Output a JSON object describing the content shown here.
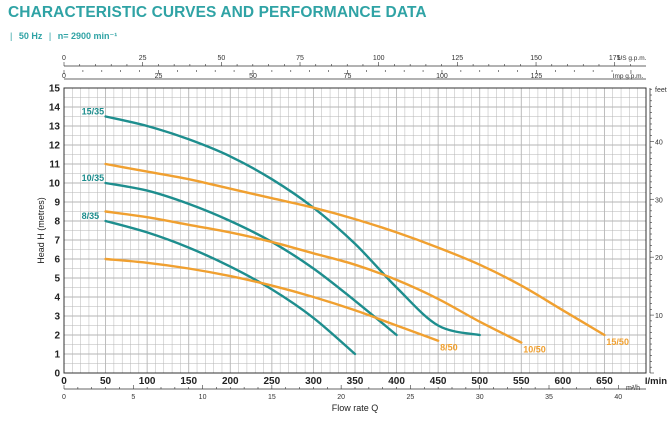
{
  "header": {
    "title": "CHARACTERISTIC CURVES AND PERFORMANCE DATA",
    "frequency": "50 Hz",
    "speed": "n= 2900 min⁻¹"
  },
  "colors": {
    "accent": "#2fa3a5",
    "teal_curve": "#1e8e8e",
    "orange_curve": "#f0a030",
    "grid": "#b5b5b5"
  },
  "chart_data": {
    "type": "line",
    "title": "",
    "xlabel": "Flow rate Q",
    "ylabel": "Head H (metres)",
    "y2label": "feet",
    "x_unit": "l/min",
    "x_unit_m3h": "m³/h",
    "top_unit_us": "US g.p.m.",
    "top_unit_imp": "Imp g.p.m.",
    "xlim": [
      0,
      700
    ],
    "ylim": [
      0,
      15
    ],
    "x_ticks": [
      0,
      50,
      100,
      150,
      200,
      250,
      300,
      350,
      400,
      450,
      500,
      550,
      600,
      650
    ],
    "y_ticks": [
      0,
      1,
      2,
      3,
      4,
      5,
      6,
      7,
      8,
      9,
      10,
      11,
      12,
      13,
      14,
      15
    ],
    "us_gpm_ticks": [
      0,
      25,
      50,
      75,
      100,
      125,
      150,
      175
    ],
    "imp_gpm_ticks": [
      0,
      25,
      50,
      75,
      100,
      125
    ],
    "m3h_ticks": [
      0,
      5,
      10,
      15,
      20,
      25,
      30,
      35,
      40
    ],
    "feet_ticks": [
      10,
      20,
      30,
      40
    ],
    "grid": true,
    "series": [
      {
        "name": "15/35",
        "color": "teal",
        "label_position": "start",
        "points": [
          [
            50,
            13.5
          ],
          [
            100,
            13
          ],
          [
            150,
            12.3
          ],
          [
            200,
            11.4
          ],
          [
            250,
            10.2
          ],
          [
            300,
            8.7
          ],
          [
            350,
            6.8
          ],
          [
            400,
            4.5
          ],
          [
            450,
            2.5
          ],
          [
            500,
            2
          ]
        ]
      },
      {
        "name": "10/35",
        "color": "teal",
        "label_position": "start",
        "points": [
          [
            50,
            10
          ],
          [
            100,
            9.6
          ],
          [
            150,
            8.9
          ],
          [
            200,
            8
          ],
          [
            250,
            6.9
          ],
          [
            300,
            5.5
          ],
          [
            350,
            3.8
          ],
          [
            400,
            2
          ]
        ]
      },
      {
        "name": "8/35",
        "color": "teal",
        "label_position": "start",
        "points": [
          [
            50,
            8
          ],
          [
            100,
            7.4
          ],
          [
            150,
            6.6
          ],
          [
            200,
            5.6
          ],
          [
            250,
            4.4
          ],
          [
            300,
            2.9
          ],
          [
            350,
            1
          ]
        ]
      },
      {
        "name": "15/50",
        "color": "orange",
        "label_position": "end",
        "points": [
          [
            50,
            11
          ],
          [
            100,
            10.6
          ],
          [
            150,
            10.2
          ],
          [
            200,
            9.7
          ],
          [
            250,
            9.2
          ],
          [
            300,
            8.7
          ],
          [
            350,
            8.1
          ],
          [
            400,
            7.4
          ],
          [
            450,
            6.6
          ],
          [
            500,
            5.7
          ],
          [
            550,
            4.6
          ],
          [
            600,
            3.3
          ],
          [
            650,
            2
          ]
        ]
      },
      {
        "name": "10/50",
        "color": "orange",
        "label_position": "end",
        "points": [
          [
            50,
            8.5
          ],
          [
            100,
            8.2
          ],
          [
            150,
            7.8
          ],
          [
            200,
            7.4
          ],
          [
            250,
            6.9
          ],
          [
            300,
            6.3
          ],
          [
            350,
            5.7
          ],
          [
            400,
            4.9
          ],
          [
            450,
            3.9
          ],
          [
            500,
            2.7
          ],
          [
            550,
            1.6
          ]
        ]
      },
      {
        "name": "8/50",
        "color": "orange",
        "label_position": "end",
        "points": [
          [
            50,
            6
          ],
          [
            100,
            5.8
          ],
          [
            150,
            5.5
          ],
          [
            200,
            5.1
          ],
          [
            250,
            4.6
          ],
          [
            300,
            4
          ],
          [
            350,
            3.3
          ],
          [
            400,
            2.5
          ],
          [
            450,
            1.7
          ]
        ]
      }
    ]
  }
}
